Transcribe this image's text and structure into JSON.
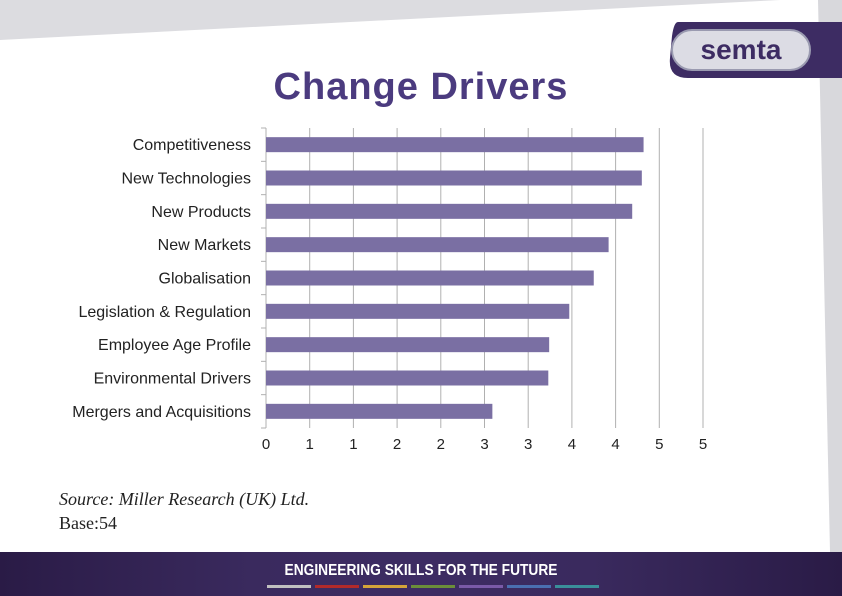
{
  "slide": {
    "title": "Change Drivers",
    "logo_text": "semta",
    "source_line": "Source: Miller Research (UK) Ltd.",
    "base_line": "Base:54",
    "footer_text": "ENGINEERING SKILLS FOR THE FUTURE",
    "stripe_colors": [
      "#c0c0c0",
      "#b22a2a",
      "#d4a43a",
      "#6b8e3a",
      "#7a5aa8",
      "#4a6fb0",
      "#3a8f9a"
    ]
  },
  "colors": {
    "bar": "#7a6fa3",
    "title": "#4b3b7f",
    "axis": "#b0b0b0"
  },
  "chart_data": {
    "type": "bar",
    "orientation": "horizontal",
    "title": "",
    "categories": [
      "Competitiveness",
      "New Technologies",
      "New Products",
      "New Markets",
      "Globalisation",
      "Legislation & Regulation",
      "Employee Age Profile",
      "Environmental Drivers",
      "Mergers and Acquisitions"
    ],
    "values": [
      4.32,
      4.3,
      4.19,
      3.92,
      3.75,
      3.47,
      3.24,
      3.23,
      2.59
    ],
    "xlim": [
      0,
      5
    ],
    "tick_values": [
      0,
      0.5,
      1,
      1.5,
      2,
      2.5,
      3,
      3.5,
      4,
      4.5,
      5
    ],
    "tick_labels": [
      "0",
      "1",
      "1",
      "2",
      "2",
      "3",
      "3",
      "4",
      "4",
      "5",
      "5"
    ],
    "grid": true,
    "legend": "none"
  }
}
